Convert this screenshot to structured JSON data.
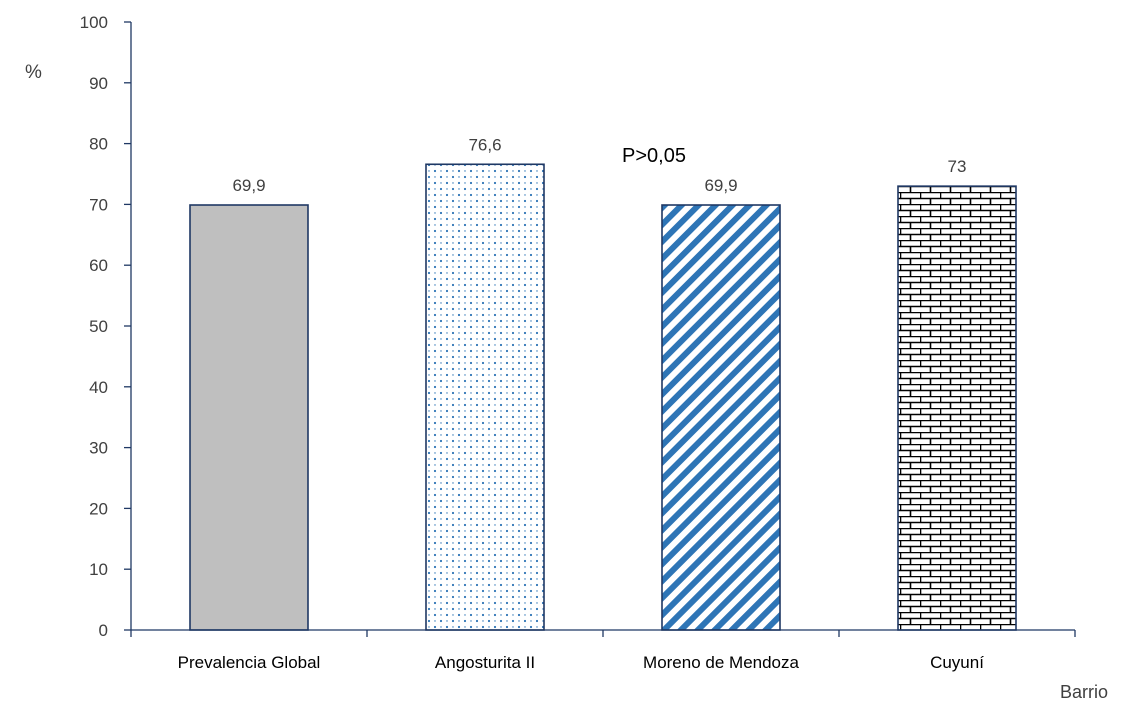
{
  "chart_data": {
    "type": "bar",
    "categories": [
      "Prevalencia Global",
      "Angosturita II",
      "Moreno de Mendoza",
      "Cuyuní"
    ],
    "values": [
      69.9,
      76.6,
      69.9,
      73
    ],
    "data_labels": [
      "69,9",
      "76,6",
      "69,9",
      "73"
    ],
    "bar_patterns": [
      "solid-gray",
      "dots",
      "diagonal-stripes",
      "bricks"
    ],
    "ylabel": "%",
    "xlabel": "Barrio",
    "ylim": [
      0,
      100
    ],
    "yticks": [
      0,
      10,
      20,
      30,
      40,
      50,
      60,
      70,
      80,
      90,
      100
    ],
    "annotation": "P>0,05",
    "grid": false,
    "legend": "none"
  },
  "colors": {
    "axis": "#1f3864",
    "bar_border": "#1f3864",
    "solid_fill": "#bfbfbf",
    "dots": "#2e75b6",
    "stripes": "#2e75b6",
    "bricks": "#000000",
    "text": "#404040",
    "annotation_text": "#000000"
  }
}
